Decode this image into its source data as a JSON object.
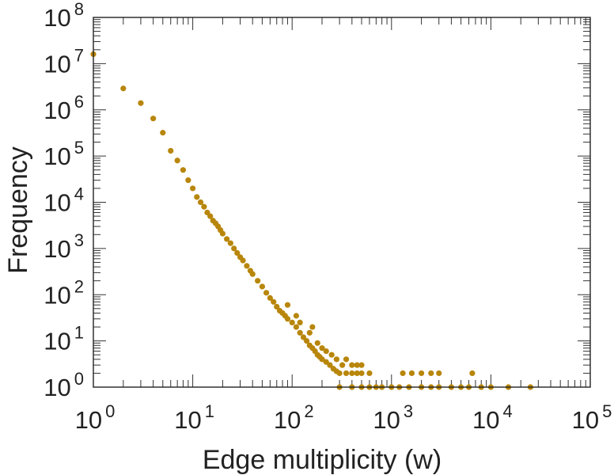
{
  "chart_data": {
    "type": "scatter",
    "xlabel": "Edge multiplicity (w)",
    "ylabel": "Frequency",
    "x_scale": "log",
    "y_scale": "log",
    "xlim": [
      1,
      100000
    ],
    "ylim": [
      1,
      100000000
    ],
    "x_ticks": [
      {
        "base": "10",
        "exp": "0"
      },
      {
        "base": "10",
        "exp": "1"
      },
      {
        "base": "10",
        "exp": "2"
      },
      {
        "base": "10",
        "exp": "3"
      },
      {
        "base": "10",
        "exp": "4"
      },
      {
        "base": "10",
        "exp": "5"
      }
    ],
    "y_ticks": [
      {
        "base": "10",
        "exp": "0"
      },
      {
        "base": "10",
        "exp": "1"
      },
      {
        "base": "10",
        "exp": "2"
      },
      {
        "base": "10",
        "exp": "3"
      },
      {
        "base": "10",
        "exp": "4"
      },
      {
        "base": "10",
        "exp": "5"
      },
      {
        "base": "10",
        "exp": "6"
      },
      {
        "base": "10",
        "exp": "7"
      },
      {
        "base": "10",
        "exp": "8"
      }
    ],
    "grid": false,
    "legend": "none",
    "marker_color": "#b8860b",
    "series": [
      {
        "points": [
          [
            1,
            16000000
          ],
          [
            2,
            2900000
          ],
          [
            3,
            1400000
          ],
          [
            4,
            650000
          ],
          [
            5,
            320000
          ],
          [
            6,
            130000
          ],
          [
            7,
            80000
          ],
          [
            8,
            50000
          ],
          [
            9,
            30000
          ],
          [
            10,
            20000
          ],
          [
            11,
            13000
          ],
          [
            12,
            10000
          ],
          [
            13,
            8000
          ],
          [
            14,
            6000
          ],
          [
            15,
            5000
          ],
          [
            16,
            4000
          ],
          [
            17,
            3500
          ],
          [
            18,
            3000
          ],
          [
            19,
            2500
          ],
          [
            20,
            2100
          ],
          [
            22,
            1600
          ],
          [
            24,
            1300
          ],
          [
            26,
            1000
          ],
          [
            28,
            800
          ],
          [
            30,
            650
          ],
          [
            32,
            550
          ],
          [
            35,
            420
          ],
          [
            38,
            330
          ],
          [
            40,
            280
          ],
          [
            45,
            200
          ],
          [
            50,
            150
          ],
          [
            55,
            110
          ],
          [
            60,
            85
          ],
          [
            65,
            70
          ],
          [
            70,
            55
          ],
          [
            75,
            45
          ],
          [
            80,
            40
          ],
          [
            85,
            35
          ],
          [
            90,
            30
          ],
          [
            100,
            25
          ],
          [
            110,
            20
          ],
          [
            120,
            15
          ],
          [
            130,
            12
          ],
          [
            140,
            10
          ],
          [
            150,
            8
          ],
          [
            160,
            7
          ],
          [
            170,
            6
          ],
          [
            180,
            5
          ],
          [
            190,
            4.5
          ],
          [
            200,
            4
          ],
          [
            220,
            3.5
          ],
          [
            240,
            3
          ],
          [
            260,
            2.5
          ],
          [
            280,
            2.2
          ],
          [
            300,
            2
          ],
          [
            350,
            2
          ],
          [
            400,
            2
          ],
          [
            450,
            2
          ],
          [
            500,
            2
          ],
          [
            600,
            2
          ],
          [
            300,
            1
          ],
          [
            400,
            1
          ],
          [
            500,
            1
          ],
          [
            600,
            1
          ],
          [
            700,
            1
          ],
          [
            800,
            1
          ],
          [
            1000,
            1
          ],
          [
            1200,
            1
          ],
          [
            1500,
            1
          ],
          [
            2000,
            1
          ],
          [
            2500,
            1
          ],
          [
            3000,
            1
          ],
          [
            4000,
            1
          ],
          [
            5000,
            1
          ],
          [
            6000,
            1
          ],
          [
            8000,
            1
          ],
          [
            10000,
            1
          ],
          [
            15000,
            1
          ],
          [
            25000,
            1
          ],
          [
            1300,
            2
          ],
          [
            1600,
            2
          ],
          [
            2000,
            2
          ],
          [
            2500,
            2
          ],
          [
            3000,
            2
          ],
          [
            6500,
            2
          ],
          [
            90,
            60
          ],
          [
            110,
            35
          ],
          [
            120,
            25
          ],
          [
            150,
            15
          ],
          [
            160,
            20
          ],
          [
            180,
            9
          ],
          [
            200,
            7
          ],
          [
            220,
            6
          ],
          [
            250,
            5
          ],
          [
            280,
            4
          ],
          [
            320,
            3
          ],
          [
            350,
            4
          ],
          [
            400,
            3
          ],
          [
            450,
            3
          ],
          [
            500,
            3
          ]
        ]
      }
    ]
  }
}
